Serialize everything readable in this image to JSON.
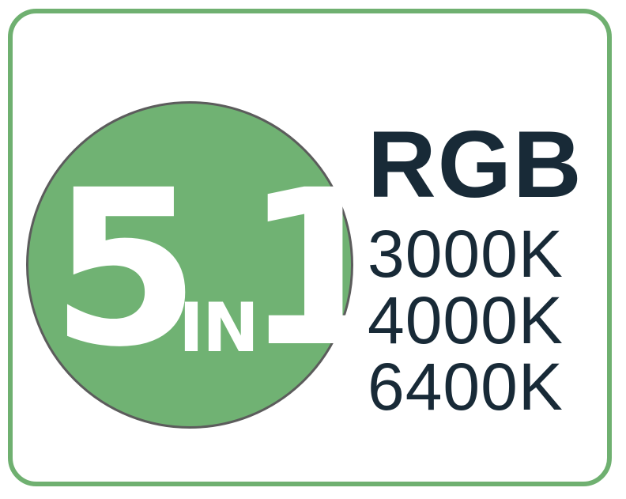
{
  "badge": {
    "number": "5",
    "connector": "IN",
    "count": "1",
    "mode": "RGB",
    "color_temperatures": [
      "3000K",
      "4000K",
      "6400K"
    ]
  },
  "colors": {
    "border": "#6fb070",
    "circle": "#70b273",
    "circle_outline": "#5c5c5c",
    "text_dark": "#182a37",
    "text_light": "#ffffff"
  }
}
